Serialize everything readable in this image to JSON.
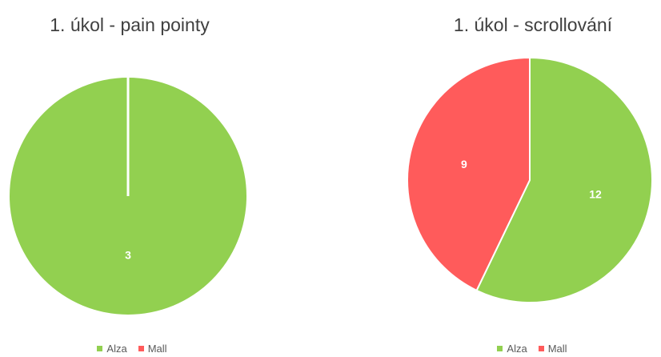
{
  "chart_data": [
    {
      "type": "pie",
      "title": "1. úkol - pain pointy",
      "categories": [
        "Alza",
        "Mall"
      ],
      "values": [
        3,
        0
      ],
      "colors": [
        "#92d050",
        "#ff5b5b"
      ],
      "legend_position": "bottom"
    },
    {
      "type": "pie",
      "title": "1. úkol - scrollování",
      "categories": [
        "Alza",
        "Mall"
      ],
      "values": [
        12,
        9
      ],
      "colors": [
        "#92d050",
        "#ff5b5b"
      ],
      "legend_position": "bottom"
    }
  ]
}
